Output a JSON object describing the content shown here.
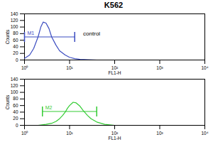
{
  "chart_data": [
    {
      "type": "line",
      "title": "K562",
      "color": "#3b4cc0",
      "log": "x",
      "x_label": "FL1-H",
      "y_label": "Counts",
      "x": [
        1,
        1.3,
        1.6,
        2,
        2.3,
        2.6,
        3,
        3.5,
        4,
        5,
        6,
        8,
        10,
        13,
        17,
        25,
        40
      ],
      "values": [
        5,
        15,
        35,
        70,
        100,
        115,
        112,
        95,
        70,
        45,
        28,
        15,
        8,
        4,
        2,
        1,
        0
      ],
      "xlim": [
        1,
        10000
      ],
      "xticks": [
        {
          "value": 1,
          "label": "10⁰"
        },
        {
          "value": 10,
          "label": "10¹"
        },
        {
          "value": 100,
          "label": "10²"
        },
        {
          "value": 1000,
          "label": "10³"
        },
        {
          "value": 10000,
          "label": "10⁴"
        }
      ],
      "ylim": [
        0,
        140
      ],
      "yticks": [
        0,
        20,
        40,
        60,
        80,
        100,
        120,
        140
      ],
      "gates": [
        {
          "label": "M1",
          "x": [
            1,
            13
          ],
          "y": 70
        }
      ],
      "annotations": [
        {
          "text": "control",
          "x": 20,
          "y": 80
        }
      ]
    },
    {
      "type": "line",
      "color": "#33cc33",
      "log": "x",
      "x_label": "FL1-H",
      "y_label": "Counts",
      "x": [
        2,
        3,
        4,
        5,
        6,
        7,
        8,
        9,
        10,
        12,
        14,
        17,
        20,
        25,
        30,
        40,
        60,
        100
      ],
      "values": [
        0,
        3,
        6,
        12,
        20,
        30,
        40,
        52,
        60,
        70,
        68,
        58,
        45,
        30,
        20,
        10,
        3,
        0
      ],
      "xlim": [
        1,
        10000
      ],
      "xticks": [
        {
          "value": 1,
          "label": "10⁰"
        },
        {
          "value": 10,
          "label": "10¹"
        },
        {
          "value": 100,
          "label": "10²"
        },
        {
          "value": 1000,
          "label": "10³"
        },
        {
          "value": 10000,
          "label": "10⁴"
        }
      ],
      "ylim": [
        0,
        140
      ],
      "yticks": [
        0,
        20,
        40,
        60,
        80,
        100,
        120,
        140
      ],
      "gates": [
        {
          "label": "M2",
          "x": [
            2.5,
            40
          ],
          "y": 42
        }
      ]
    }
  ]
}
